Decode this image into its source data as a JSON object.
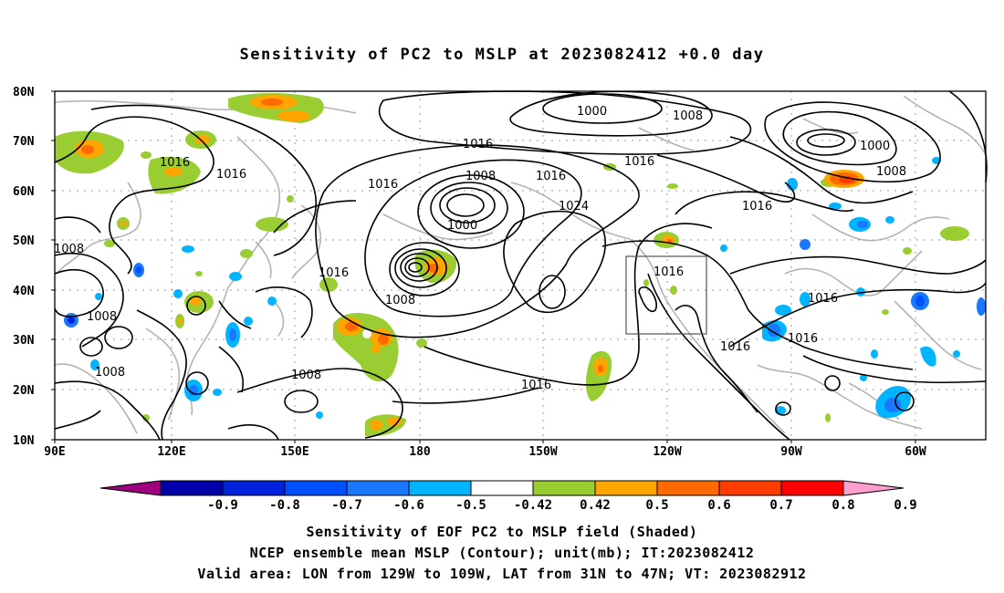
{
  "title": "Sensitivity of PC2 to MSLP at 2023082412 +0.0 day",
  "map": {
    "lat_labels": [
      "80N",
      "70N",
      "60N",
      "50N",
      "40N",
      "30N",
      "20N",
      "10N"
    ],
    "lon_labels": [
      "90E",
      "120E",
      "150E",
      "180",
      "150W",
      "120W",
      "90W",
      "60W"
    ],
    "contour_labels": [
      {
        "text": "1000",
        "key": "c1000a"
      },
      {
        "text": "1008",
        "key": "c1008a"
      },
      {
        "text": "1000",
        "key": "c1000b"
      },
      {
        "text": "1008",
        "key": "c1008b"
      },
      {
        "text": "1016",
        "key": "c1016a"
      },
      {
        "text": "1016",
        "key": "c1016b"
      },
      {
        "text": "1016",
        "key": "c1016c"
      },
      {
        "text": "1016",
        "key": "c1016d"
      },
      {
        "text": "1008",
        "key": "c1008c"
      },
      {
        "text": "1000",
        "key": "c1000c"
      },
      {
        "text": "1016",
        "key": "c1016e"
      },
      {
        "text": "1024",
        "key": "c1024"
      },
      {
        "text": "1016",
        "key": "c1016f"
      },
      {
        "text": "1016",
        "key": "c1016g"
      },
      {
        "text": "1008",
        "key": "c1008d"
      },
      {
        "text": "1016",
        "key": "c1016h"
      },
      {
        "text": "1016",
        "key": "c1016i"
      },
      {
        "text": "1016",
        "key": "c1016j"
      },
      {
        "text": "1016",
        "key": "c1016k"
      },
      {
        "text": "1016",
        "key": "c1016l"
      },
      {
        "text": "1008",
        "key": "c1008e"
      },
      {
        "text": "1008",
        "key": "c1008f"
      },
      {
        "text": "1008",
        "key": "c1008g"
      },
      {
        "text": "1008",
        "key": "c1008h"
      },
      {
        "text": "1016",
        "key": "c1016m"
      }
    ],
    "valid_area": {
      "lon_from": "129W",
      "lon_to": "109W",
      "lat_from": "31N",
      "lat_to": "47N"
    }
  },
  "colorbar": {
    "labels": [
      "-0.9",
      "-0.8",
      "-0.7",
      "-0.6",
      "-0.5",
      "-0.42",
      "0.42",
      "0.5",
      "0.6",
      "0.7",
      "0.8",
      "0.9"
    ],
    "colors": [
      "#a0007f",
      "#0000a8",
      "#0022dd",
      "#0050ff",
      "#1a78ff",
      "#00b4ff",
      "#ffffff",
      "#9acd32",
      "#ffa500",
      "#ff6a00",
      "#ff3c00",
      "#ff0000",
      "#ff9fcf"
    ]
  },
  "captions": {
    "line1": "Sensitivity of EOF PC2 to MSLP field (Shaded)",
    "line2": "NCEP ensemble mean MSLP (Contour); unit(mb); IT:2023082412",
    "line3": "Valid area: LON from 129W to 109W, LAT from 31N to 47N; VT: 2023082912"
  },
  "colors": {
    "land": "#b4b4b4",
    "contour": "#000000",
    "grid": "#9a9a9a"
  }
}
